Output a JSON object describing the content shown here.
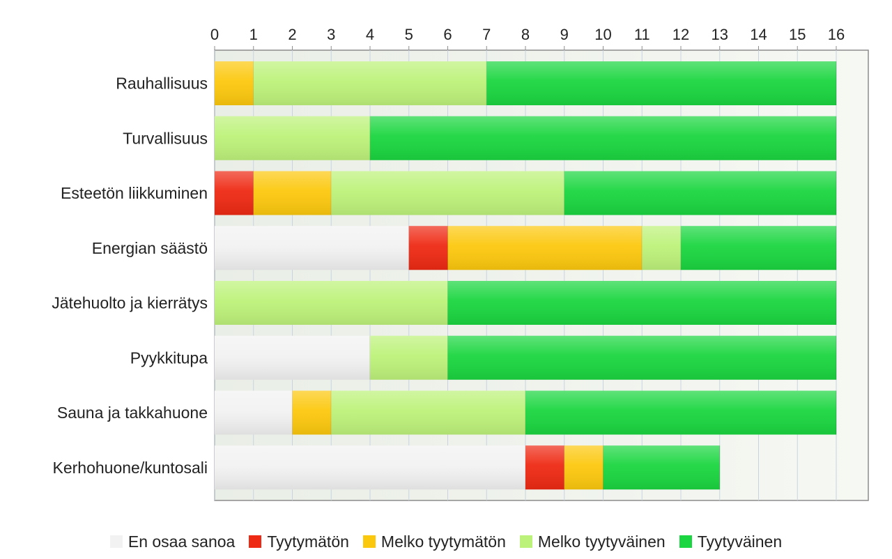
{
  "chart_data": {
    "type": "bar",
    "orientation": "horizontal",
    "stacked": true,
    "title": "",
    "xlabel": "",
    "ylabel": "",
    "xlim": [
      0,
      16
    ],
    "x_ticks": [
      "0",
      "1",
      "2",
      "3",
      "4",
      "5",
      "6",
      "7",
      "8",
      "9",
      "10",
      "11",
      "12",
      "13",
      "14",
      "15",
      "16"
    ],
    "x_axis_position": "top",
    "grid": true,
    "legend_position": "bottom",
    "categories": [
      "Rauhallisuus",
      "Turvallisuus",
      "Esteetön liikkuminen",
      "Energian säästö",
      "Jätehuolto ja kierrätys",
      "Pyykkitupa",
      "Sauna ja takkahuone",
      "Kerhohuone/kuntosali"
    ],
    "series": [
      {
        "name": "En osaa sanoa",
        "color": "#f2f2f2",
        "values": [
          0,
          0,
          0,
          5,
          0,
          4,
          2,
          8
        ]
      },
      {
        "name": "Tyytymätön",
        "color": "#ee2a14",
        "values": [
          0,
          0,
          1,
          1,
          0,
          0,
          0,
          1
        ]
      },
      {
        "name": "Melko tyytymätön",
        "color": "#fcc80e",
        "values": [
          1,
          0,
          2,
          5,
          0,
          0,
          1,
          1
        ]
      },
      {
        "name": "Melko tyytyväinen",
        "color": "#bdf27a",
        "values": [
          6,
          4,
          6,
          1,
          6,
          2,
          5,
          0
        ]
      },
      {
        "name": "Tyytyväinen",
        "color": "#1bd640",
        "values": [
          9,
          12,
          7,
          4,
          10,
          10,
          8,
          3
        ]
      }
    ]
  }
}
